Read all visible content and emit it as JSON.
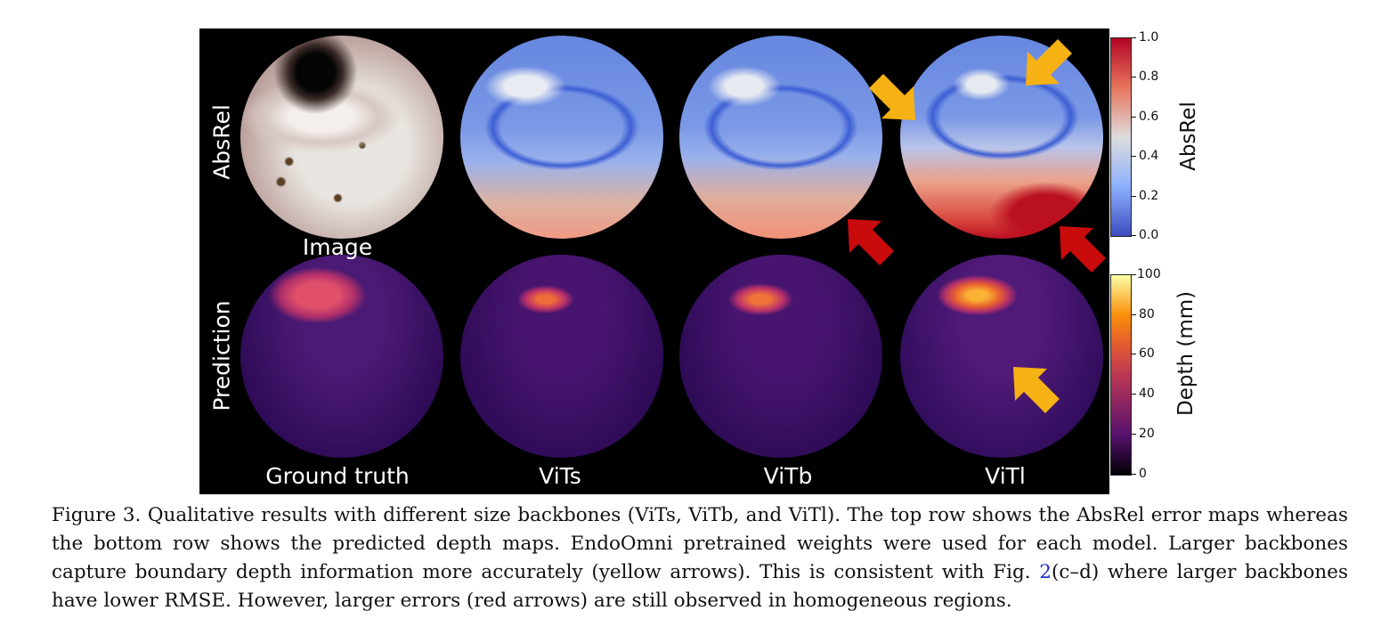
{
  "figure": {
    "row_labels": [
      "AbsRel",
      "Prediction"
    ],
    "top_left_label": "Image",
    "column_labels": [
      "Ground truth",
      "ViTs",
      "ViTb",
      "ViTl"
    ],
    "arrow_colors": {
      "yellow": "#f6b114",
      "red": "#c90b0b"
    },
    "arrows": [
      {
        "panel": "AbsRel-ViTb",
        "color": "red",
        "pointing": "up-left"
      },
      {
        "panel": "AbsRel-ViTl",
        "color": "yellow",
        "pointing": "down-right"
      },
      {
        "panel": "AbsRel-ViTl",
        "color": "yellow",
        "pointing": "down-left"
      },
      {
        "panel": "AbsRel-ViTl",
        "color": "red",
        "pointing": "up-left"
      },
      {
        "panel": "Prediction-ViTl",
        "color": "yellow",
        "pointing": "up-left"
      }
    ]
  },
  "colorbars": [
    {
      "title": "AbsRel",
      "colormap": "coolwarm",
      "ticks": [
        "1.0",
        "0.8",
        "0.6",
        "0.4",
        "0.2",
        "0.0"
      ],
      "range": [
        0.0,
        1.0
      ]
    },
    {
      "title": "Depth (mm)",
      "colormap": "inferno",
      "ticks": [
        "100",
        "80",
        "60",
        "40",
        "20",
        "0"
      ],
      "range": [
        0,
        100
      ]
    }
  ],
  "caption": {
    "part1": "Figure 3.  Qualitative results with different size backbones (ViTs, ViTb, and ViTl). The top row shows the AbsRel error maps whereas the bottom row shows the predicted depth maps. EndoOmni pretrained weights were used for each model. Larger backbones capture boundary depth information more accurately (yellow arrows). This is consistent with Fig. ",
    "ref": "2",
    "part2": "(c–d) where larger backbones have lower RMSE. However, larger errors (red arrows) are still observed in homogeneous regions."
  }
}
